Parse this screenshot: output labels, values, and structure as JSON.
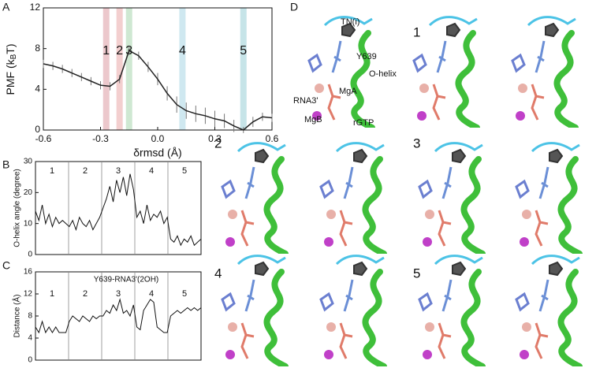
{
  "panel_labels": [
    "A",
    "B",
    "C",
    "D"
  ],
  "chart_data": [
    {
      "type": "errorline",
      "x": [
        -0.6,
        -0.55,
        -0.5,
        -0.45,
        -0.4,
        -0.35,
        -0.3,
        -0.25,
        -0.2,
        -0.15,
        -0.1,
        -0.05,
        0.0,
        0.05,
        0.1,
        0.15,
        0.2,
        0.25,
        0.3,
        0.35,
        0.4,
        0.45,
        0.5,
        0.55,
        0.6
      ],
      "series": [
        {
          "color": "#222222",
          "values": [
            6.5,
            6.3,
            6.0,
            5.6,
            5.2,
            4.8,
            4.4,
            4.3,
            5.0,
            7.8,
            7.3,
            6.2,
            5.0,
            3.6,
            2.5,
            1.9,
            1.6,
            1.4,
            1.1,
            0.9,
            0.4,
            0.0,
            0.8,
            1.3,
            1.2
          ],
          "errors": [
            0.4,
            0.4,
            0.4,
            0.4,
            0.4,
            0.4,
            0.4,
            0.4,
            0.4,
            0.4,
            0.4,
            0.5,
            0.6,
            0.7,
            0.8,
            0.8,
            0.8,
            0.8,
            0.8,
            0.7,
            0.6,
            0.3,
            0.5,
            0.4,
            0.4
          ]
        }
      ],
      "xlim": [
        -0.6,
        0.6
      ],
      "ylim": [
        0,
        12
      ],
      "xticks": [
        -0.6,
        -0.3,
        {
          "value": 0,
          "label": "0.0"
        },
        0.3,
        0.6
      ],
      "yticks": [
        0,
        4,
        8,
        12
      ],
      "x_label": "δrmsd (Å)",
      "y_label": {
        "main": "PMF (k",
        "sub": "B",
        "end": "T)"
      },
      "highlights": [
        {
          "label": "1",
          "x": -0.27,
          "color": "#ecc8cc"
        },
        {
          "label": "2",
          "x": -0.2,
          "color": "#f3cfcf"
        },
        {
          "label": "3",
          "x": -0.15,
          "color": "#cfe8d2"
        },
        {
          "label": "4",
          "x": 0.13,
          "color": "#cfe8f0"
        },
        {
          "label": "5",
          "x": 0.45,
          "color": "#c6e4e8"
        }
      ]
    },
    {
      "type": "trace",
      "color": "#111111",
      "values": [
        14,
        11,
        16,
        10,
        13,
        9,
        12,
        10,
        11,
        10,
        9,
        11,
        8,
        12,
        10,
        9,
        11,
        8,
        10,
        12,
        15,
        18,
        22,
        17,
        24,
        20,
        25,
        19,
        26,
        21,
        12,
        14,
        10,
        16,
        11,
        13,
        12,
        14,
        10,
        12,
        5,
        4,
        6,
        3,
        5,
        4,
        6,
        3,
        4,
        5
      ],
      "ylim": [
        0,
        30
      ],
      "yticks": [
        0,
        10,
        20,
        30
      ],
      "y_label": "O-helix angle (degree)",
      "segments": [
        "1",
        "2",
        "3",
        "4",
        "5"
      ]
    },
    {
      "type": "trace",
      "color": "#111111",
      "values": [
        6,
        5,
        7,
        5,
        6,
        5,
        6,
        5,
        5,
        5,
        7,
        8,
        7.5,
        7,
        8,
        7.5,
        7,
        8,
        7.5,
        8,
        8,
        9,
        8.5,
        10,
        9,
        11,
        8.5,
        9,
        8,
        10,
        6,
        5.5,
        9,
        10,
        11,
        10.5,
        6,
        5.5,
        5,
        5,
        8,
        8.5,
        9,
        8.5,
        9,
        9.5,
        9,
        9.5,
        9,
        9.5
      ],
      "ylim": [
        0,
        16
      ],
      "yticks": [
        0,
        4,
        8,
        12,
        16
      ],
      "y_label": "Distance (Å)",
      "annotation": "Y639-RNA3'(2OH)",
      "segments": [
        "1",
        "2",
        "3",
        "4",
        "5"
      ]
    }
  ],
  "structure": {
    "labels": {
      "tn": "TN(i)",
      "tyr": "Y639",
      "helix": "O-helix",
      "rna": "RNA3'",
      "mga": "MgA",
      "mgb": "MgB",
      "ntp": "rGTP"
    },
    "states": [
      "1",
      "2",
      "3",
      "4",
      "5"
    ]
  }
}
